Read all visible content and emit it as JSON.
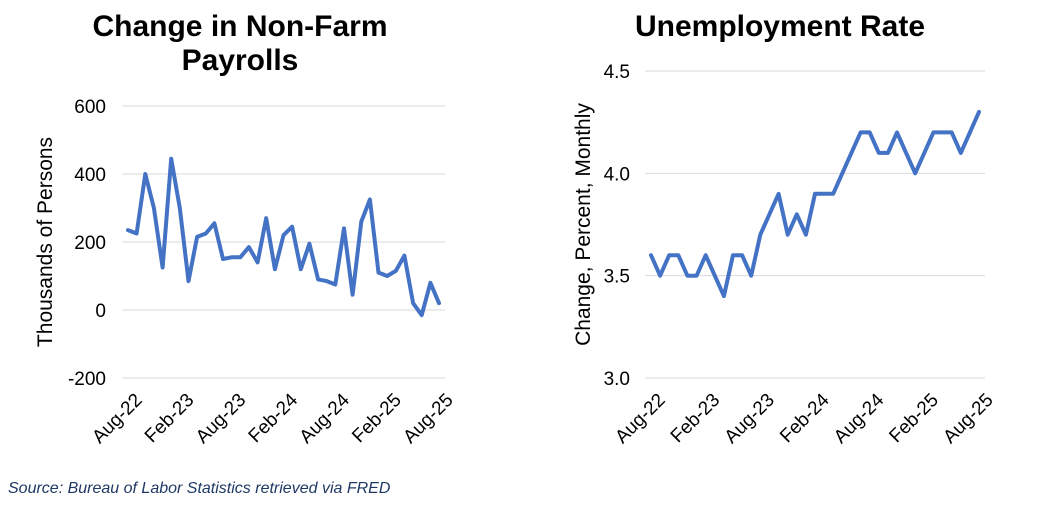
{
  "source_note": "Source: Bureau of Labor Statistics retrieved via FRED",
  "colors": {
    "series": "#4472c4",
    "grid": "#d9d9d9"
  },
  "chart_data": [
    {
      "type": "line",
      "title": "Change in Non-Farm\nPayrolls",
      "ylabel": "Thousands of Persons",
      "xlabel": "",
      "ylim": [
        -200,
        600
      ],
      "yticks": [
        -200,
        0,
        200,
        400,
        600
      ],
      "grid": true,
      "xtick_labels": [
        "Aug-22",
        "Feb-23",
        "Aug-23",
        "Feb-24",
        "Aug-24",
        "Feb-25",
        "Aug-25"
      ],
      "x": [
        "Aug-22",
        "Sep-22",
        "Oct-22",
        "Nov-22",
        "Dec-22",
        "Jan-23",
        "Feb-23",
        "Mar-23",
        "Apr-23",
        "May-23",
        "Jun-23",
        "Jul-23",
        "Aug-23",
        "Sep-23",
        "Oct-23",
        "Nov-23",
        "Dec-23",
        "Jan-24",
        "Feb-24",
        "Mar-24",
        "Apr-24",
        "May-24",
        "Jun-24",
        "Jul-24",
        "Aug-24",
        "Sep-24",
        "Oct-24",
        "Nov-24",
        "Dec-24",
        "Jan-25",
        "Feb-25",
        "Mar-25",
        "Apr-25",
        "May-25",
        "Jun-25",
        "Jul-25",
        "Aug-25"
      ],
      "values": [
        235,
        225,
        400,
        300,
        125,
        445,
        300,
        85,
        215,
        225,
        255,
        150,
        155,
        155,
        185,
        140,
        270,
        120,
        220,
        245,
        120,
        195,
        90,
        85,
        75,
        240,
        45,
        260,
        325,
        110,
        100,
        115,
        160,
        20,
        -15,
        80,
        20
      ]
    },
    {
      "type": "line",
      "title": "Unemployment Rate",
      "ylabel": "Change, Percent, Monthly",
      "xlabel": "",
      "ylim": [
        3.0,
        4.5
      ],
      "yticks": [
        3.0,
        3.5,
        4.0,
        4.5
      ],
      "grid": true,
      "xtick_labels": [
        "Aug-22",
        "Feb-23",
        "Aug-23",
        "Feb-24",
        "Aug-24",
        "Feb-25",
        "Aug-25"
      ],
      "x": [
        "Aug-22",
        "Sep-22",
        "Oct-22",
        "Nov-22",
        "Dec-22",
        "Jan-23",
        "Feb-23",
        "Mar-23",
        "Apr-23",
        "May-23",
        "Jun-23",
        "Jul-23",
        "Aug-23",
        "Sep-23",
        "Oct-23",
        "Nov-23",
        "Dec-23",
        "Jan-24",
        "Feb-24",
        "Mar-24",
        "Apr-24",
        "May-24",
        "Jun-24",
        "Jul-24",
        "Aug-24",
        "Sep-24",
        "Oct-24",
        "Nov-24",
        "Dec-24",
        "Jan-25",
        "Feb-25",
        "Mar-25",
        "Apr-25",
        "May-25",
        "Jun-25",
        "Jul-25",
        "Aug-25"
      ],
      "values": [
        3.6,
        3.5,
        3.6,
        3.6,
        3.5,
        3.5,
        3.6,
        3.5,
        3.4,
        3.6,
        3.6,
        3.5,
        3.7,
        3.8,
        3.9,
        3.7,
        3.8,
        3.7,
        3.9,
        3.9,
        3.9,
        4.0,
        4.1,
        4.2,
        4.2,
        4.1,
        4.1,
        4.2,
        4.1,
        4.0,
        4.1,
        4.2,
        4.2,
        4.2,
        4.1,
        4.2,
        4.3
      ]
    }
  ]
}
